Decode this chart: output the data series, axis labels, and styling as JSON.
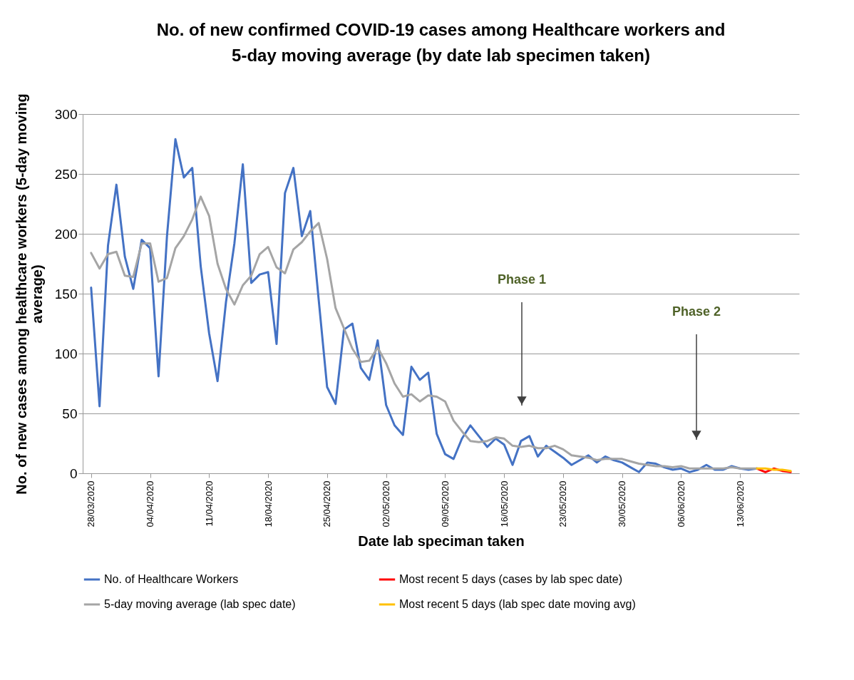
{
  "chart_data": {
    "type": "line",
    "title": "No. of new confirmed COVID-19 cases among Healthcare workers and 5-day moving average (by date lab specimen taken)",
    "xlabel": "Date lab speciman taken",
    "ylabel": "No. of new cases among healthcare workers (5-day moving average)",
    "x": [
      "2020-03-28",
      "2020-03-29",
      "2020-03-30",
      "2020-03-31",
      "2020-04-01",
      "2020-04-02",
      "2020-04-03",
      "2020-04-04",
      "2020-04-05",
      "2020-04-06",
      "2020-04-07",
      "2020-04-08",
      "2020-04-09",
      "2020-04-10",
      "2020-04-11",
      "2020-04-12",
      "2020-04-13",
      "2020-04-14",
      "2020-04-15",
      "2020-04-16",
      "2020-04-17",
      "2020-04-18",
      "2020-04-19",
      "2020-04-20",
      "2020-04-21",
      "2020-04-22",
      "2020-04-23",
      "2020-04-24",
      "2020-04-25",
      "2020-04-26",
      "2020-04-27",
      "2020-04-28",
      "2020-04-29",
      "2020-04-30",
      "2020-05-01",
      "2020-05-02",
      "2020-05-03",
      "2020-05-04",
      "2020-05-05",
      "2020-05-06",
      "2020-05-07",
      "2020-05-08",
      "2020-05-09",
      "2020-05-10",
      "2020-05-11",
      "2020-05-12",
      "2020-05-13",
      "2020-05-14",
      "2020-05-15",
      "2020-05-16",
      "2020-05-17",
      "2020-05-18",
      "2020-05-19",
      "2020-05-20",
      "2020-05-21",
      "2020-05-22",
      "2020-05-23",
      "2020-05-24",
      "2020-05-25",
      "2020-05-26",
      "2020-05-27",
      "2020-05-28",
      "2020-05-29",
      "2020-05-30",
      "2020-05-31",
      "2020-06-01",
      "2020-06-02",
      "2020-06-03",
      "2020-06-04",
      "2020-06-05",
      "2020-06-06",
      "2020-06-07",
      "2020-06-08",
      "2020-06-09",
      "2020-06-10",
      "2020-06-11",
      "2020-06-12",
      "2020-06-13",
      "2020-06-14",
      "2020-06-15"
    ],
    "series": [
      {
        "name": "No. of Healthcare Workers",
        "color": "#4472c4",
        "values": [
          155,
          56,
          190,
          241,
          181,
          154,
          195,
          188,
          81,
          198,
          279,
          247,
          255,
          173,
          117,
          77,
          143,
          192,
          258,
          159,
          166,
          168,
          108,
          234,
          255,
          198,
          219,
          145,
          72,
          58,
          120,
          125,
          88,
          78,
          111,
          57,
          40,
          32,
          89,
          78,
          84,
          33,
          16,
          12,
          29,
          40,
          31,
          22,
          29,
          24,
          7,
          27,
          31,
          14,
          23,
          18,
          13,
          7,
          11,
          15,
          9,
          14,
          11,
          9,
          5,
          1,
          9,
          8,
          5,
          3,
          4,
          1,
          3,
          7,
          3,
          3,
          6,
          4,
          3,
          4
        ]
      },
      {
        "name": "Most recent 5 days (cases by lab spec date)",
        "color": "#ff0000",
        "x": [
          "2020-06-15",
          "2020-06-16",
          "2020-06-17",
          "2020-06-18",
          "2020-06-19"
        ],
        "values": [
          4,
          1,
          4,
          2,
          1
        ]
      },
      {
        "name": "5-day moving average (lab spec date)",
        "color": "#a5a5a5",
        "values": [
          184,
          171,
          183,
          185,
          165,
          164,
          192,
          192,
          160,
          163,
          188,
          198,
          212,
          231,
          215,
          175,
          154,
          141,
          157,
          165,
          183,
          189,
          172,
          167,
          187,
          193,
          202,
          209,
          179,
          138,
          121,
          104,
          93,
          94,
          105,
          92,
          75,
          64,
          66,
          60,
          65,
          64,
          60,
          44,
          35,
          27,
          26,
          27,
          30,
          29,
          23,
          22,
          23,
          21,
          21,
          23,
          20,
          15,
          14,
          13,
          11,
          12,
          12,
          12,
          10,
          8,
          7,
          6,
          6,
          5,
          6,
          4,
          4,
          4,
          4,
          4,
          5,
          4,
          4,
          4
        ]
      },
      {
        "name": "Most recent 5 days (lab spec date moving avg)",
        "color": "#ffc000",
        "x": [
          "2020-06-15",
          "2020-06-16",
          "2020-06-17",
          "2020-06-18",
          "2020-06-19"
        ],
        "values": [
          4,
          4,
          3,
          3,
          2
        ]
      }
    ],
    "xlim": [
      "2020-03-27",
      "2020-06-20"
    ],
    "xticks": [
      {
        "value": "2020-03-28",
        "label": "28/03/2020"
      },
      {
        "value": "2020-04-04",
        "label": "04/04/2020"
      },
      {
        "value": "2020-04-11",
        "label": "11/04/2020"
      },
      {
        "value": "2020-04-18",
        "label": "18/04/2020"
      },
      {
        "value": "2020-04-25",
        "label": "25/04/2020"
      },
      {
        "value": "2020-05-02",
        "label": "02/05/2020"
      },
      {
        "value": "2020-05-09",
        "label": "09/05/2020"
      },
      {
        "value": "2020-05-16",
        "label": "16/05/2020"
      },
      {
        "value": "2020-05-23",
        "label": "23/05/2020"
      },
      {
        "value": "2020-05-30",
        "label": "30/05/2020"
      },
      {
        "value": "2020-06-06",
        "label": "06/06/2020"
      },
      {
        "value": "2020-06-13",
        "label": "13/06/2020"
      }
    ],
    "ylim": [
      0,
      300
    ],
    "yticks": [
      0,
      50,
      100,
      150,
      200,
      250,
      300
    ],
    "grid": "y",
    "legend": "bottom",
    "annotations": [
      "Phase 1",
      "Phase 2"
    ]
  }
}
